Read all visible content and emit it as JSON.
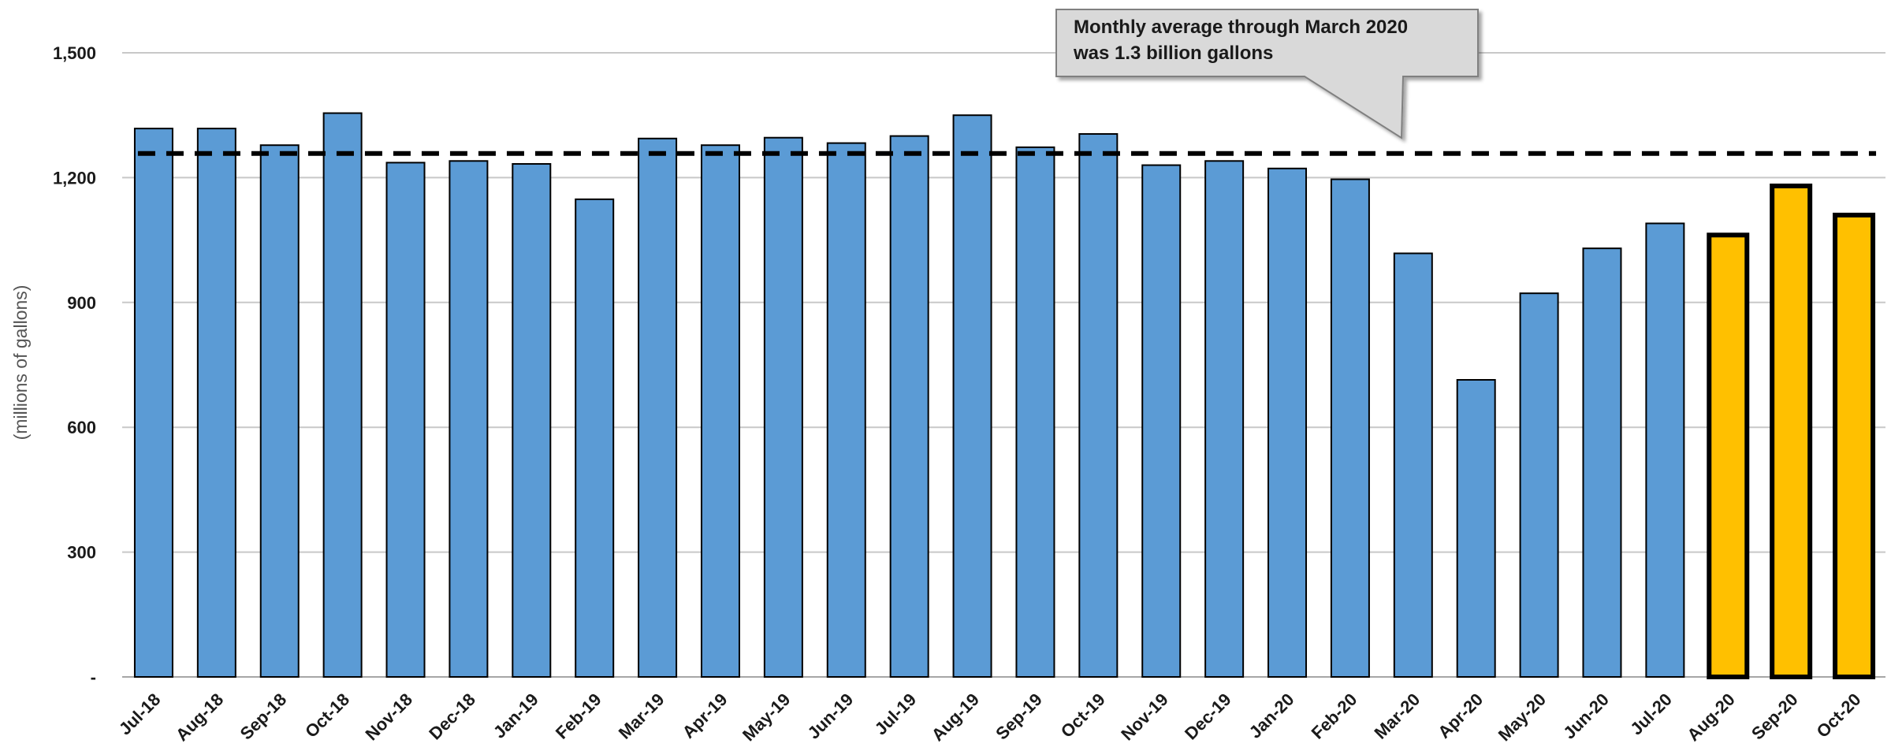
{
  "chart_data": {
    "type": "bar",
    "ylabel": "(millions of gallons)",
    "ylim": [
      0,
      1500
    ],
    "yticks": [
      {
        "value": 0,
        "label": "-"
      },
      {
        "value": 300,
        "label": "300"
      },
      {
        "value": 600,
        "label": "600"
      },
      {
        "value": 900,
        "label": "900"
      },
      {
        "value": 1200,
        "label": "1,200"
      },
      {
        "value": 1500,
        "label": "1,500"
      }
    ],
    "grid": true,
    "categories": [
      "Jul-18",
      "Aug-18",
      "Sep-18",
      "Oct-18",
      "Nov-18",
      "Dec-18",
      "Jan-19",
      "Feb-19",
      "Mar-19",
      "Apr-19",
      "May-19",
      "Jun-19",
      "Jul-19",
      "Aug-19",
      "Sep-19",
      "Oct-19",
      "Nov-19",
      "Dec-19",
      "Jan-20",
      "Feb-20",
      "Mar-20",
      "Apr-20",
      "May-20",
      "Jun-20",
      "Jul-20",
      "Aug-20",
      "Sep-20",
      "Oct-20"
    ],
    "values": [
      1318,
      1318,
      1278,
      1355,
      1236,
      1240,
      1233,
      1148,
      1294,
      1278,
      1296,
      1283,
      1300,
      1350,
      1273,
      1305,
      1230,
      1240,
      1222,
      1196,
      1018,
      714,
      922,
      1030,
      1090,
      1062,
      1180,
      1110
    ],
    "colors": {
      "actual": "#5b9bd5",
      "highlight": "#ffc000",
      "outline": "#000000",
      "reference_line": "#000000"
    },
    "highlight_categories": [
      "Aug-20",
      "Sep-20",
      "Oct-20"
    ],
    "reference_line": {
      "value": 1258,
      "style": "dashed"
    },
    "annotation": {
      "lines": [
        "Monthly average through March 2020",
        "was 1.3 billion gallons"
      ]
    }
  }
}
